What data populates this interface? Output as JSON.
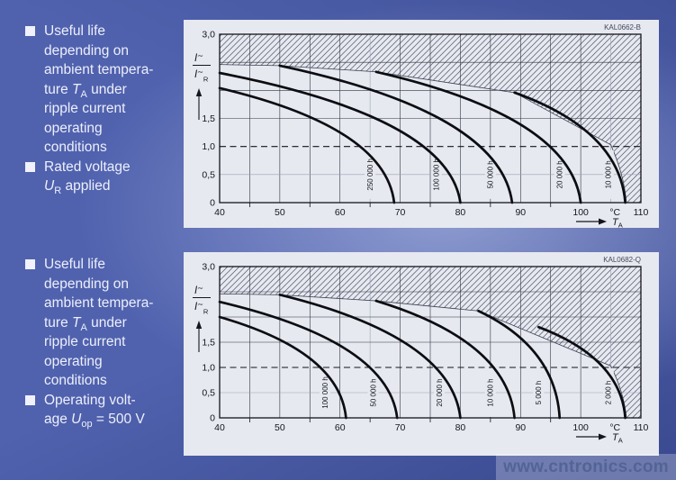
{
  "page": {
    "watermark": "www.cntronics.com"
  },
  "notes": [
    {
      "items": [
        {
          "lines": [
            [
              {
                "t": "Useful life"
              }
            ],
            [
              {
                "t": "depending on"
              }
            ],
            [
              {
                "t": "ambient tempera-"
              }
            ],
            [
              {
                "t": "ture "
              },
              {
                "t": "T",
                "style": "it"
              },
              {
                "t": "A",
                "style": "sub"
              },
              {
                "t": " under"
              }
            ],
            [
              {
                "t": "ripple current"
              }
            ],
            [
              {
                "t": "operating"
              }
            ],
            [
              {
                "t": "conditions"
              }
            ]
          ]
        },
        {
          "lines": [
            [
              {
                "t": "Rated voltage"
              }
            ],
            [
              {
                "t": "U",
                "style": "it"
              },
              {
                "t": "R",
                "style": "sub"
              },
              {
                "t": " applied"
              }
            ]
          ]
        }
      ]
    },
    {
      "items": [
        {
          "lines": [
            [
              {
                "t": "Useful life"
              }
            ],
            [
              {
                "t": "depending on"
              }
            ],
            [
              {
                "t": "ambient tempera-"
              }
            ],
            [
              {
                "t": "ture "
              },
              {
                "t": "T",
                "style": "it"
              },
              {
                "t": "A",
                "style": "sub"
              },
              {
                "t": " under"
              }
            ],
            [
              {
                "t": "ripple current"
              }
            ],
            [
              {
                "t": "operating"
              }
            ],
            [
              {
                "t": "conditions"
              }
            ]
          ]
        },
        {
          "lines": [
            [
              {
                "t": "Operating volt-"
              }
            ],
            [
              {
                "t": "age "
              },
              {
                "t": "U",
                "style": "it"
              },
              {
                "t": "op",
                "style": "sub"
              },
              {
                "t": " = 500 V"
              }
            ]
          ]
        }
      ]
    }
  ],
  "chart_data": [
    {
      "type": "line",
      "id_label": "KAL0662-B",
      "title": "Useful life vs ambient temperature under ripple current, rated voltage applied",
      "xlabel": "TA",
      "xlabel_base": "T",
      "xlabel_sub": "A",
      "x_unit": "°C",
      "ylabel": "I∼/I∼R",
      "ylabel_num": "I",
      "ylabel_num_mark": "∼",
      "ylabel_den": "I",
      "ylabel_den_mark": "∼",
      "ylabel_den_sub": "R",
      "xlim": [
        40,
        110
      ],
      "ylim": [
        0,
        3
      ],
      "x_ticks": [
        {
          "v": 40,
          "label": "40"
        },
        {
          "v": 50,
          "label": "50"
        },
        {
          "v": 60,
          "label": "60"
        },
        {
          "v": 70,
          "label": "70"
        },
        {
          "v": 80,
          "label": "80"
        },
        {
          "v": 90,
          "label": "90"
        },
        {
          "v": 100,
          "label": "100"
        },
        {
          "v": 105.7,
          "label": "°C"
        },
        {
          "v": 110,
          "label": "110"
        }
      ],
      "x_minor_ticks": [
        45,
        55,
        65,
        75,
        85,
        95
      ],
      "y_ticks": [
        {
          "v": 3,
          "label": "3,0"
        },
        {
          "v": 1.5,
          "label": "1,5"
        },
        {
          "v": 1,
          "label": "1,0"
        },
        {
          "v": 0.5,
          "label": "0,5"
        },
        {
          "v": 0,
          "label": "0"
        }
      ],
      "grid_y": [
        0.5,
        1.5,
        2,
        2.5
      ],
      "dashed_y": 1.0,
      "gray_vlines": [
        65,
        105
      ],
      "hatch_boundary": [
        [
          40,
          2.46
        ],
        [
          50,
          2.44
        ],
        [
          66,
          2.33
        ],
        [
          89,
          1.96
        ],
        [
          105,
          1.03
        ]
      ],
      "boundary_tail": {
        "cx": 107.2,
        "cy": 0.5,
        "x": 107.6,
        "y": 0
      },
      "series": [
        {
          "name": "250 000 h",
          "hours": 250000,
          "start": [
            40,
            2.04
          ],
          "end_x": 69,
          "label_x": 65
        },
        {
          "name": "100 000 h",
          "hours": 100000,
          "start": [
            40,
            2.31
          ],
          "end_x": 80,
          "label_x": 76
        },
        {
          "name": "50 000 h",
          "hours": 50000,
          "start": [
            50,
            2.44
          ],
          "end_x": 88.6,
          "label_x": 85
        },
        {
          "name": "20 000 h",
          "hours": 20000,
          "start": [
            66,
            2.33
          ],
          "end_x": 100,
          "label_x": 96.5
        },
        {
          "name": "10 000 h",
          "hours": 10000,
          "start": [
            89,
            1.96
          ],
          "end_x": 107.4,
          "label_x": 104.6
        }
      ]
    },
    {
      "type": "line",
      "id_label": "KAL0682-Q",
      "title": "Useful life vs ambient temperature under ripple current, operating voltage 500 V",
      "xlabel": "TA",
      "xlabel_base": "T",
      "xlabel_sub": "A",
      "x_unit": "°C",
      "ylabel": "I∼/I∼R",
      "ylabel_num": "I",
      "ylabel_num_mark": "∼",
      "ylabel_den": "I",
      "ylabel_den_mark": "∼",
      "ylabel_den_sub": "R",
      "xlim": [
        40,
        110
      ],
      "ylim": [
        0,
        3
      ],
      "x_ticks": [
        {
          "v": 40,
          "label": "40"
        },
        {
          "v": 50,
          "label": "50"
        },
        {
          "v": 60,
          "label": "60"
        },
        {
          "v": 70,
          "label": "70"
        },
        {
          "v": 80,
          "label": "80"
        },
        {
          "v": 90,
          "label": "90"
        },
        {
          "v": 100,
          "label": "100"
        },
        {
          "v": 105.7,
          "label": "°C"
        },
        {
          "v": 110,
          "label": "110"
        }
      ],
      "x_minor_ticks": [
        45,
        55,
        65,
        75,
        85,
        95
      ],
      "y_ticks": [
        {
          "v": 3,
          "label": "3,0"
        },
        {
          "v": 1.5,
          "label": "1,5"
        },
        {
          "v": 1,
          "label": "1,0"
        },
        {
          "v": 0.5,
          "label": "0,5"
        },
        {
          "v": 0,
          "label": "0"
        }
      ],
      "grid_y": [
        0.5,
        1.5,
        2,
        2.5
      ],
      "dashed_y": 1.0,
      "gray_vlines": [
        65,
        105
      ],
      "hatch_boundary": [
        [
          40,
          2.46
        ],
        [
          50,
          2.44
        ],
        [
          66,
          2.32
        ],
        [
          83,
          2.12
        ],
        [
          105,
          1.03
        ]
      ],
      "boundary_tail": {
        "cx": 107.2,
        "cy": 0.5,
        "x": 107.6,
        "y": 0
      },
      "series": [
        {
          "name": "100 000 h",
          "hours": 100000,
          "start": [
            40,
            2.0
          ],
          "end_x": 61,
          "label_x": 57.5
        },
        {
          "name": "50 000 h",
          "hours": 50000,
          "start": [
            40,
            2.3
          ],
          "end_x": 69.5,
          "label_x": 65.5
        },
        {
          "name": "20 000 h",
          "hours": 20000,
          "start": [
            50,
            2.44
          ],
          "end_x": 80,
          "label_x": 76.5
        },
        {
          "name": "10 000 h",
          "hours": 10000,
          "start": [
            66,
            2.32
          ],
          "end_x": 89,
          "label_x": 85
        },
        {
          "name": "5 000 h",
          "hours": 5000,
          "start": [
            83,
            2.12
          ],
          "end_x": 96.5,
          "label_x": 93
        },
        {
          "name": "2 000 h",
          "hours": 2000,
          "start": [
            93,
            1.8
          ],
          "end_x": 107.4,
          "label_x": 104.6
        }
      ]
    }
  ]
}
